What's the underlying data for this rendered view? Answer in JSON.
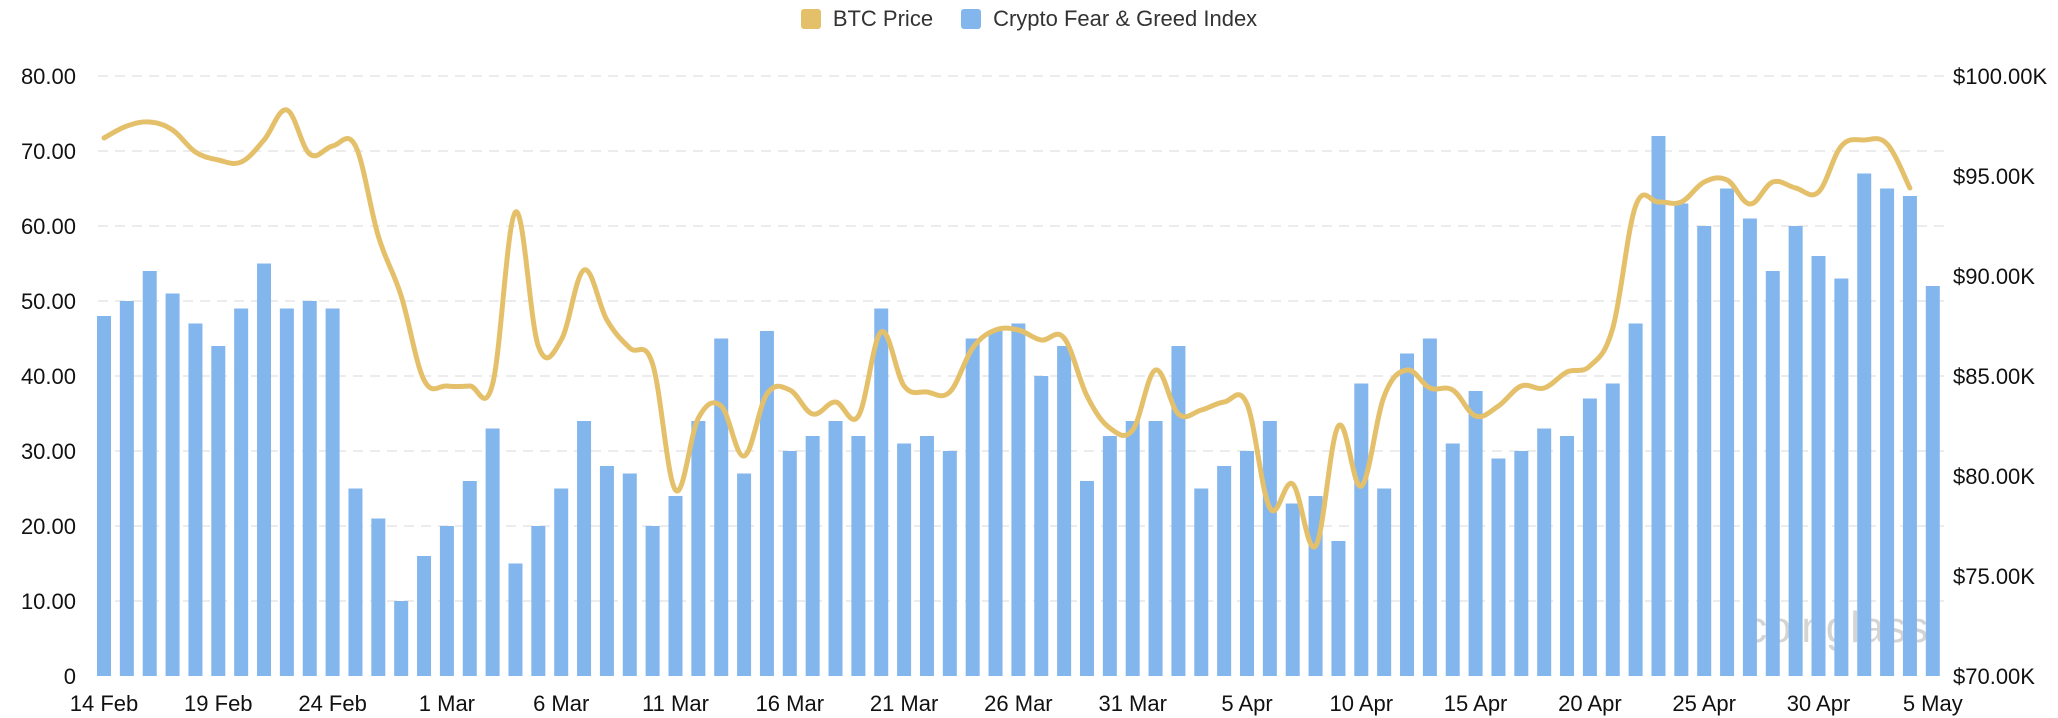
{
  "chart_data": {
    "type": "bar",
    "legend": [
      {
        "name": "BTC Price",
        "color": "#e5c06b"
      },
      {
        "name": "Crypto Fear & Greed Index",
        "color": "#84b6ee"
      }
    ],
    "x_tick_labels": [
      "14 Feb",
      "19 Feb",
      "24 Feb",
      "1 Mar",
      "6 Mar",
      "11 Mar",
      "16 Mar",
      "21 Mar",
      "26 Mar",
      "31 Mar",
      "5 Apr",
      "10 Apr",
      "15 Apr",
      "20 Apr",
      "25 Apr",
      "30 Apr",
      "5 May"
    ],
    "y_left_tick_labels": [
      "0",
      "10.00",
      "20.00",
      "30.00",
      "40.00",
      "50.00",
      "60.00",
      "70.00",
      "80.00"
    ],
    "y_right_tick_labels": [
      "$70.00K",
      "$75.00K",
      "$80.00K",
      "$85.00K",
      "$90.00K",
      "$95.00K",
      "$100.00K"
    ],
    "y_left_range": [
      0,
      80
    ],
    "y_right_range": [
      70000,
      100000
    ],
    "grid": true,
    "legend_position": "top-center",
    "watermark": "coinglass",
    "series": [
      {
        "name": "Crypto Fear & Greed Index",
        "type": "bar",
        "axis": "left",
        "values": [
          48,
          50,
          54,
          51,
          47,
          44,
          49,
          55,
          49,
          50,
          49,
          25,
          21,
          10,
          16,
          20,
          26,
          33,
          15,
          20,
          25,
          34,
          28,
          27,
          20,
          24,
          34,
          45,
          27,
          46,
          30,
          32,
          34,
          32,
          49,
          31,
          32,
          30,
          45,
          46,
          47,
          40,
          44,
          26,
          32,
          34,
          34,
          44,
          25,
          28,
          30,
          34,
          23,
          24,
          18,
          39,
          25,
          43,
          45,
          31,
          38,
          29,
          30,
          33,
          32,
          37,
          39,
          47,
          72,
          63,
          60,
          65,
          61,
          54,
          60,
          56,
          53,
          67,
          65,
          64,
          52
        ]
      },
      {
        "name": "BTC Price",
        "type": "line",
        "axis": "right",
        "values": [
          96900,
          97500,
          97700,
          97300,
          96200,
          95800,
          95700,
          96800,
          98300,
          96100,
          96500,
          96500,
          92000,
          89000,
          84800,
          84500,
          84500,
          84600,
          93200,
          86500,
          86800,
          90300,
          87800,
          86400,
          85600,
          79300,
          82900,
          83500,
          81000,
          84100,
          84300,
          83100,
          83700,
          83000,
          87200,
          84500,
          84200,
          84200,
          86400,
          87300,
          87300,
          86800,
          86900,
          84000,
          82400,
          82300,
          85300,
          83100,
          83300,
          83700,
          83600,
          78400,
          79600,
          76500,
          82500,
          79500,
          84000,
          85300,
          84400,
          84300,
          83000,
          83500,
          84500,
          84400,
          85200,
          85500,
          87400,
          93500,
          93700,
          93700,
          94700,
          94800,
          93600,
          94700,
          94400,
          94200,
          96500,
          96800,
          96600,
          94400
        ]
      }
    ]
  }
}
